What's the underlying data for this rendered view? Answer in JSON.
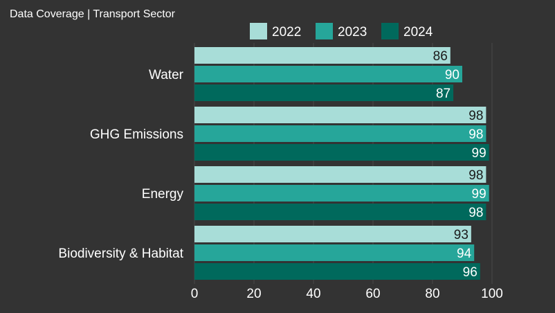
{
  "chart_data": {
    "type": "bar",
    "orientation": "horizontal",
    "title": "Data Coverage | Transport Sector",
    "categories": [
      "Water",
      "GHG Emissions",
      "Energy",
      "Biodiversity & Habitat"
    ],
    "series": [
      {
        "name": "2022",
        "color": "#a8ddd8",
        "label_color": "#1a1a1a",
        "values": [
          86,
          98,
          98,
          93
        ]
      },
      {
        "name": "2023",
        "color": "#26a69a",
        "label_color": "#ffffff",
        "values": [
          90,
          98,
          99,
          94
        ]
      },
      {
        "name": "2024",
        "color": "#00695c",
        "label_color": "#ffffff",
        "values": [
          87,
          99,
          98,
          96
        ]
      }
    ],
    "xlim": [
      0,
      100
    ],
    "xticks": [
      0,
      20,
      40,
      60,
      80,
      100
    ],
    "grid": true,
    "legend": "top",
    "xlabel": "",
    "ylabel": ""
  },
  "colors": {
    "background": "#333333",
    "grid": "#4a4a4a",
    "text": "#ffffff"
  }
}
